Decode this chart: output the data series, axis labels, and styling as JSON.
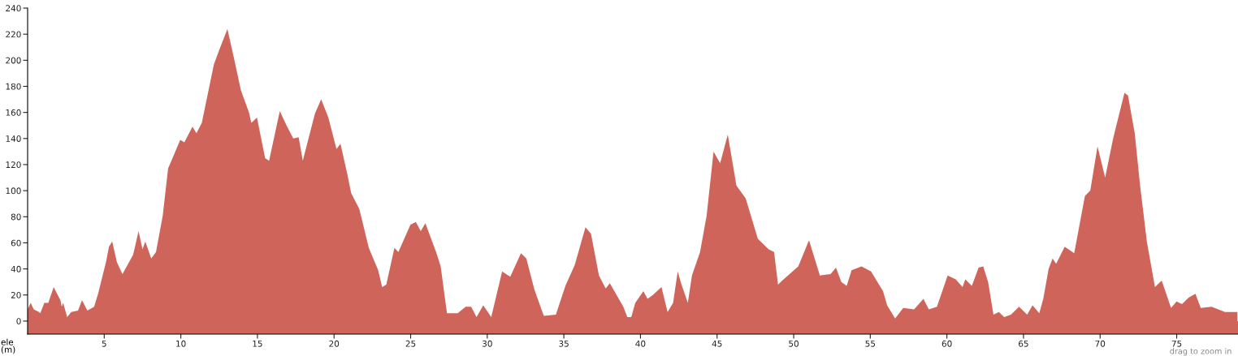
{
  "chart_data": {
    "type": "area",
    "xlabel": null,
    "ylabel": "ele\n(m)",
    "color": "#cf645a",
    "xlim": [
      0,
      79
    ],
    "ylim": [
      -10,
      240
    ],
    "xticks": [
      5,
      10,
      15,
      20,
      25,
      30,
      35,
      40,
      45,
      50,
      55,
      60,
      65,
      70,
      75
    ],
    "yticks": [
      0,
      20,
      40,
      60,
      80,
      100,
      120,
      140,
      160,
      180,
      200,
      220,
      240
    ],
    "grid": false,
    "bands": [
      {
        "axis": "y",
        "from": -10,
        "to": 0,
        "color": "#cf645a"
      }
    ],
    "annotations": [
      "drag to zoom in"
    ],
    "x": [
      0,
      0.2,
      0.4,
      0.74,
      0.83,
      1.09,
      1.35,
      1.7,
      2.14,
      2.23,
      2.32,
      2.58,
      2.85,
      3.29,
      3.55,
      3.9,
      4.34,
      4.6,
      5.13,
      5.31,
      5.52,
      5.83,
      6.19,
      6.89,
      7.24,
      7.5,
      7.68,
      8.07,
      8.38,
      8.82,
      9.17,
      9.53,
      9.96,
      10.23,
      10.76,
      11.02,
      11.37,
      12.16,
      12.51,
      13.04,
      13.48,
      13.92,
      14.45,
      14.6,
      14.97,
      15.5,
      15.76,
      16.46,
      16.9,
      17.34,
      17.69,
      17.96,
      18.75,
      19.16,
      19.63,
      20.16,
      20.42,
      20.86,
      21.12,
      21.65,
      22.27,
      22.88,
      23.14,
      23.41,
      23.94,
      24.2,
      24.99,
      25.34,
      25.66,
      25.96,
      26.66,
      26.96,
      27.37,
      28.07,
      28.59,
      28.95,
      29.3,
      29.74,
      30.26,
      30.97,
      31.5,
      32.2,
      32.55,
      33.08,
      33.69,
      34.48,
      35.1,
      35.71,
      36.41,
      36.77,
      37.29,
      37.73,
      38.0,
      38.88,
      39.14,
      39.4,
      39.66,
      40.19,
      40.46,
      40.81,
      41.37,
      41.77,
      42.13,
      42.43,
      42.65,
      43.09,
      43.36,
      43.89,
      44.32,
      44.77,
      45.2,
      45.7,
      46.26,
      46.87,
      47.66,
      48.37,
      48.72,
      48.98,
      49.25,
      50.3,
      51.0,
      51.71,
      52.41,
      52.76,
      53.11,
      53.46,
      53.78,
      54.43,
      55.05,
      55.83,
      56.1,
      56.62,
      57.15,
      57.86,
      58.47,
      58.82,
      59.35,
      60.05,
      60.58,
      61.02,
      61.2,
      61.63,
      62.07,
      62.37,
      62.69,
      63.04,
      63.39,
      63.74,
      64.18,
      64.71,
      65.24,
      65.59,
      66.03,
      66.29,
      66.64,
      66.9,
      67.13,
      67.69,
      68.31,
      69.01,
      69.36,
      69.83,
      70.33,
      70.85,
      71.59,
      71.82,
      72.26,
      72.61,
      73.05,
      73.58,
      74.02,
      74.63,
      74.99,
      75.34,
      75.78,
      76.22,
      76.57,
      77.27,
      78.15,
      78.96
    ],
    "values": [
      9,
      14,
      9,
      7,
      6,
      14,
      14,
      26,
      16,
      11,
      14,
      3,
      7,
      8,
      16,
      8,
      11,
      21,
      46,
      57,
      61,
      45,
      36,
      51,
      69,
      55,
      61,
      48,
      53,
      81,
      117,
      127,
      139,
      137,
      149,
      144,
      152,
      197,
      208,
      224,
      201,
      177,
      160,
      152,
      156,
      125,
      123,
      161,
      150,
      140,
      141,
      123,
      159,
      170,
      156,
      132,
      136,
      113,
      98,
      86,
      56,
      39,
      26,
      28,
      56,
      53,
      74,
      76,
      69,
      75,
      53,
      42,
      6,
      6,
      11,
      11,
      3,
      12,
      3,
      38,
      34,
      52,
      48,
      24,
      4,
      5,
      27,
      43,
      72,
      67,
      35,
      25,
      29,
      11,
      3,
      3,
      14,
      23,
      17,
      20,
      26,
      7,
      14,
      38,
      29,
      14,
      35,
      53,
      81,
      130,
      121,
      143,
      104,
      94,
      63,
      55,
      53,
      28,
      31,
      42,
      62,
      35,
      36,
      41,
      30,
      27,
      39,
      42,
      38,
      23,
      12,
      2,
      10,
      9,
      17,
      9,
      11,
      35,
      32,
      26,
      32,
      27,
      41,
      42,
      30,
      5,
      7,
      3,
      5,
      11,
      5,
      12,
      6,
      17,
      40,
      48,
      44,
      57,
      52,
      96,
      100,
      134,
      110,
      140,
      175,
      173,
      144,
      104,
      61,
      26,
      31,
      10,
      15,
      13,
      18,
      21,
      10,
      11,
      7,
      7
    ]
  }
}
